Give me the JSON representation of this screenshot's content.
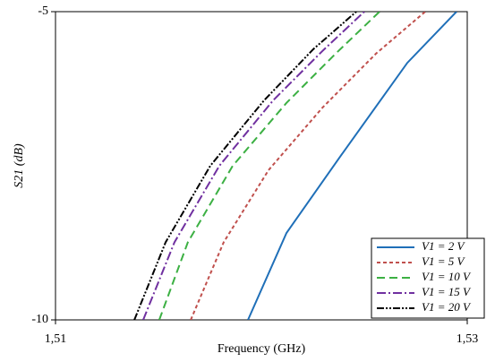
{
  "chart_data": {
    "type": "line",
    "x_label": "Frequency (GHz)",
    "y_label": "S21 (dB)",
    "xlim": [
      1.51,
      1.53
    ],
    "xticks": [
      {
        "value": 1.51,
        "label": "1,51"
      },
      {
        "value": 1.53,
        "label": "1,53"
      }
    ],
    "ylim": [
      -10,
      -5
    ],
    "yticks": [
      -10,
      -5
    ],
    "legend": "lower right",
    "series": [
      {
        "name": "V1 = 2 V",
        "color": "#1f6fb8",
        "dash": "none",
        "x": [
          1.51935,
          1.52122,
          1.52383,
          1.52709,
          1.52948
        ],
        "values": [
          -10,
          -8.59,
          -7.35,
          -5.83,
          -5
        ]
      },
      {
        "name": "V1 = 5 V",
        "color": "#c0504d",
        "dash": "4 3",
        "x": [
          1.51657,
          1.51817,
          1.52035,
          1.52296,
          1.52557,
          1.52796
        ],
        "values": [
          -10,
          -8.74,
          -7.57,
          -6.56,
          -5.68,
          -5
        ]
      },
      {
        "name": "V1 = 10 V",
        "color": "#3cb043",
        "dash": "9 5",
        "x": [
          1.51504,
          1.51643,
          1.51861,
          1.52122,
          1.52361,
          1.52574
        ],
        "values": [
          -10,
          -8.74,
          -7.5,
          -6.48,
          -5.68,
          -5
        ]
      },
      {
        "name": "V1 = 15 V",
        "color": "#7030a0",
        "dash": "10 3 2 3",
        "x": [
          1.51426,
          1.51578,
          1.51796,
          1.52057,
          1.52296,
          1.525
        ],
        "values": [
          -10,
          -8.74,
          -7.5,
          -6.44,
          -5.64,
          -5
        ]
      },
      {
        "name": "V1 = 20 V",
        "color": "#000000",
        "dash": "8 2 2 2 2 2",
        "x": [
          1.51383,
          1.51535,
          1.51752,
          1.52013,
          1.52252,
          1.52461
        ],
        "values": [
          -10,
          -8.74,
          -7.5,
          -6.44,
          -5.61,
          -5
        ]
      }
    ]
  }
}
